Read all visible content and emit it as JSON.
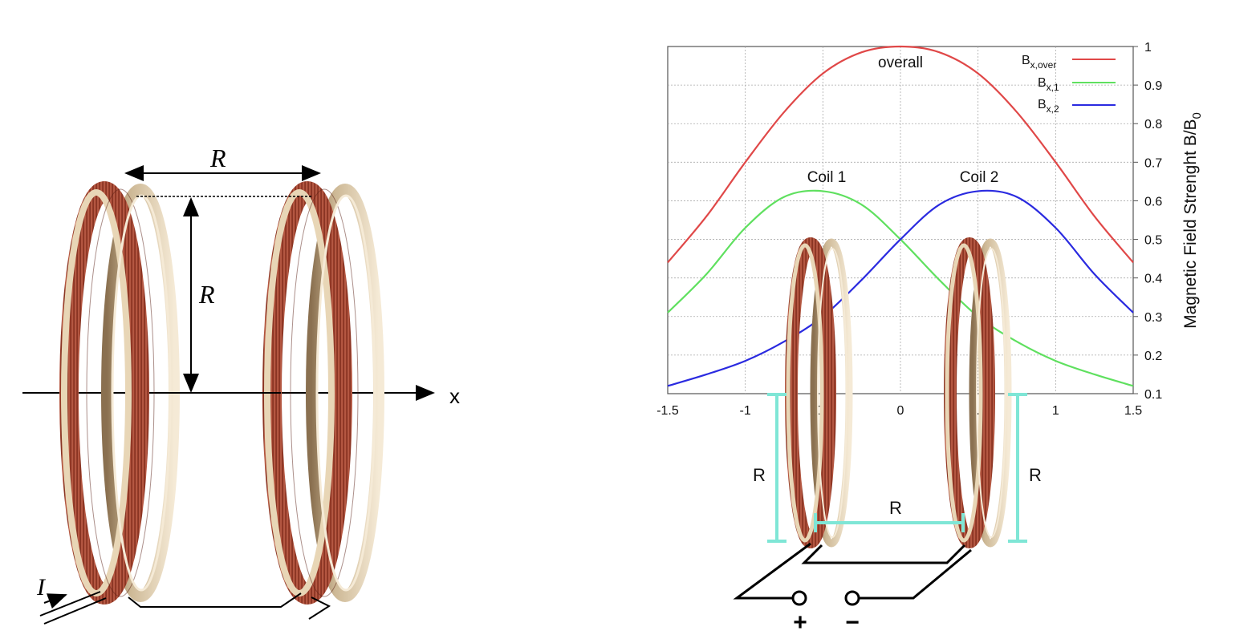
{
  "left_diagram": {
    "label_R_horizontal": "R",
    "label_R_vertical": "R",
    "axis_label": "x",
    "current_label": "I"
  },
  "right_diagram": {
    "annotation_overall": "overall",
    "annotation_coil1": "Coil 1",
    "annotation_coil2": "Coil 2",
    "label_R_left": "R",
    "label_R_right": "R",
    "label_R_between": "R",
    "terminal_plus": "+",
    "terminal_minus": "−",
    "colors": {
      "overall": "#e04848",
      "coil1": "#5fe05f",
      "coil2": "#2a2ae0",
      "dimension": "#7fe6d6",
      "copper": "#a8442e",
      "brass": "#c9b594"
    }
  },
  "chart_data": {
    "type": "line",
    "xlim": [
      -1.5,
      1.5
    ],
    "ylim": [
      0.1,
      1.0
    ],
    "xticks": [
      "-1.5",
      "-1",
      "-0.5",
      "0",
      "0.5",
      "1",
      "1.5"
    ],
    "yticks": [
      "0.1",
      "0.2",
      "0.3",
      "0.4",
      "0.5",
      "0.6",
      "0.7",
      "0.8",
      "0.9",
      "1"
    ],
    "ylabel_main": "Magnetic Field Strenght B/B",
    "ylabel_sub": "0",
    "grid": true,
    "legend_position": "top-right",
    "series": [
      {
        "name": "B",
        "name_sub": "x,over",
        "color": "#e04848",
        "x": [
          -1.5,
          -1.25,
          -1.0,
          -0.75,
          -0.5,
          -0.25,
          0.0,
          0.25,
          0.5,
          0.75,
          1.0,
          1.25,
          1.5
        ],
        "y": [
          0.44,
          0.56,
          0.7,
          0.83,
          0.93,
          0.985,
          1.0,
          0.985,
          0.93,
          0.83,
          0.7,
          0.56,
          0.44
        ]
      },
      {
        "name": "B",
        "name_sub": "x,1",
        "color": "#5fe05f",
        "x": [
          -1.5,
          -1.25,
          -1.0,
          -0.75,
          -0.5,
          -0.25,
          0.0,
          0.25,
          0.5,
          0.75,
          1.0,
          1.25,
          1.5
        ],
        "y": [
          0.31,
          0.41,
          0.53,
          0.61,
          0.625,
          0.59,
          0.5,
          0.395,
          0.3,
          0.235,
          0.185,
          0.15,
          0.12
        ]
      },
      {
        "name": "B",
        "name_sub": "x,2",
        "color": "#2a2ae0",
        "x": [
          -1.5,
          -1.25,
          -1.0,
          -0.75,
          -0.5,
          -0.25,
          0.0,
          0.25,
          0.5,
          0.75,
          1.0,
          1.25,
          1.5
        ],
        "y": [
          0.12,
          0.15,
          0.185,
          0.235,
          0.3,
          0.395,
          0.5,
          0.59,
          0.625,
          0.61,
          0.53,
          0.41,
          0.31
        ]
      }
    ]
  }
}
